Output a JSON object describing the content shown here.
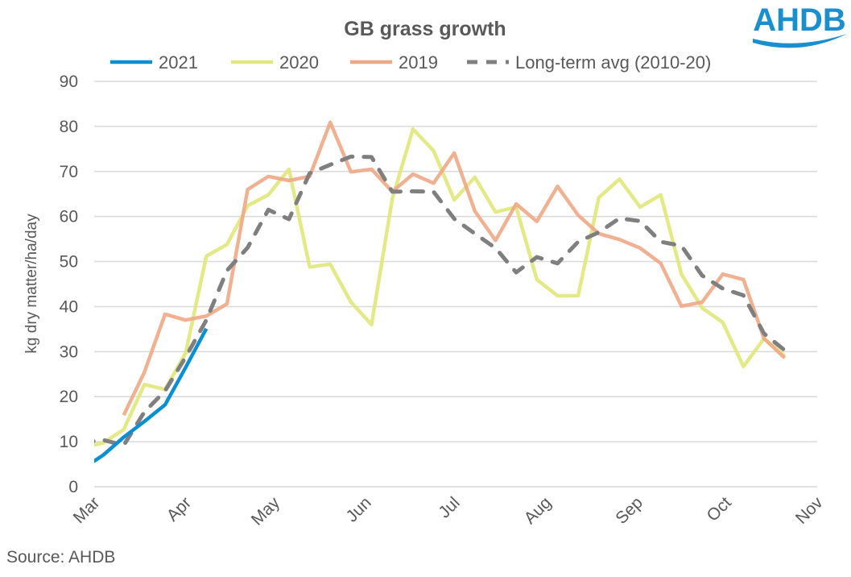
{
  "logo_text": "AHDB",
  "source": "Source: AHDB",
  "chart_data": {
    "type": "line",
    "title": "GB grass growth",
    "xlabel": "",
    "ylabel": "kg dry matter/ha/day",
    "ylim": [
      0,
      90
    ],
    "yticks": [
      0,
      10,
      20,
      30,
      40,
      50,
      60,
      70,
      80,
      90
    ],
    "xlim": [
      "2021-03-01",
      "2021-11-01"
    ],
    "xtick_labels": [
      "Mar",
      "Apr",
      "May",
      "Jun",
      "Jul",
      "Aug",
      "Sep",
      "Oct",
      "Nov"
    ],
    "xtick_dates": [
      "2021-03-01",
      "2021-04-01",
      "2021-05-01",
      "2021-06-01",
      "2021-07-01",
      "2021-08-01",
      "2021-09-01",
      "2021-10-01",
      "2021-11-01"
    ],
    "grid": "horizontal",
    "legend_position": "top",
    "x": [
      "2021-02-25",
      "2021-03-04",
      "2021-03-11",
      "2021-03-18",
      "2021-03-25",
      "2021-04-01",
      "2021-04-08",
      "2021-04-15",
      "2021-04-22",
      "2021-04-29",
      "2021-05-06",
      "2021-05-13",
      "2021-05-20",
      "2021-05-27",
      "2021-06-03",
      "2021-06-10",
      "2021-06-17",
      "2021-06-24",
      "2021-07-01",
      "2021-07-08",
      "2021-07-15",
      "2021-07-22",
      "2021-07-29",
      "2021-08-05",
      "2021-08-12",
      "2021-08-19",
      "2021-08-26",
      "2021-09-02",
      "2021-09-09",
      "2021-09-16",
      "2021-09-23",
      "2021-09-30",
      "2021-10-07",
      "2021-10-14",
      "2021-10-21"
    ],
    "series": [
      {
        "name": "2021",
        "color": "#0b8fd3",
        "dashed": false,
        "values": [
          4.0,
          7.0,
          11.0,
          14.5,
          18.2,
          26.5,
          35.1,
          null,
          null,
          null,
          null,
          null,
          null,
          null,
          null,
          null,
          null,
          null,
          null,
          null,
          null,
          null,
          null,
          null,
          null,
          null,
          null,
          null,
          null,
          null,
          null,
          null,
          null,
          null,
          null
        ]
      },
      {
        "name": "2020",
        "color": "#e1e77a",
        "dashed": false,
        "values": [
          8.8,
          9.7,
          12.7,
          22.7,
          21.6,
          29.7,
          51.2,
          53.8,
          62.4,
          64.8,
          70.5,
          48.8,
          49.4,
          41.0,
          36.0,
          63.9,
          79.4,
          74.6,
          63.7,
          68.7,
          61.0,
          62.1,
          46.0,
          42.4,
          42.4,
          64.2,
          68.3,
          62.1,
          64.8,
          47.2,
          39.7,
          36.5,
          26.7,
          32.9,
          29.0
        ]
      },
      {
        "name": "2019",
        "color": "#eea886",
        "dashed": false,
        "values": [
          null,
          null,
          15.9,
          25.4,
          38.3,
          37.0,
          37.9,
          40.6,
          66.0,
          68.9,
          68.0,
          68.9,
          80.9,
          69.9,
          70.5,
          65.5,
          69.4,
          67.4,
          74.1,
          61.2,
          54.7,
          62.8,
          58.9,
          66.7,
          60.3,
          56.2,
          54.9,
          53.0,
          49.6,
          40.1,
          41.0,
          47.2,
          46.0,
          32.9,
          28.6
        ]
      },
      {
        "name": "Long-term avg (2010-20)",
        "color": "#7f7f7f",
        "dashed": true,
        "values": [
          9.8,
          10.4,
          9.2,
          16.6,
          21.3,
          28.8,
          37.0,
          48.0,
          53.1,
          61.5,
          59.4,
          69.6,
          71.5,
          73.3,
          73.2,
          65.5,
          65.6,
          65.5,
          59.5,
          56.2,
          53.0,
          47.6,
          51.0,
          49.6,
          54.4,
          56.5,
          59.6,
          59.0,
          54.4,
          53.5,
          46.9,
          44.0,
          42.5,
          34.0,
          30.3
        ]
      }
    ]
  }
}
